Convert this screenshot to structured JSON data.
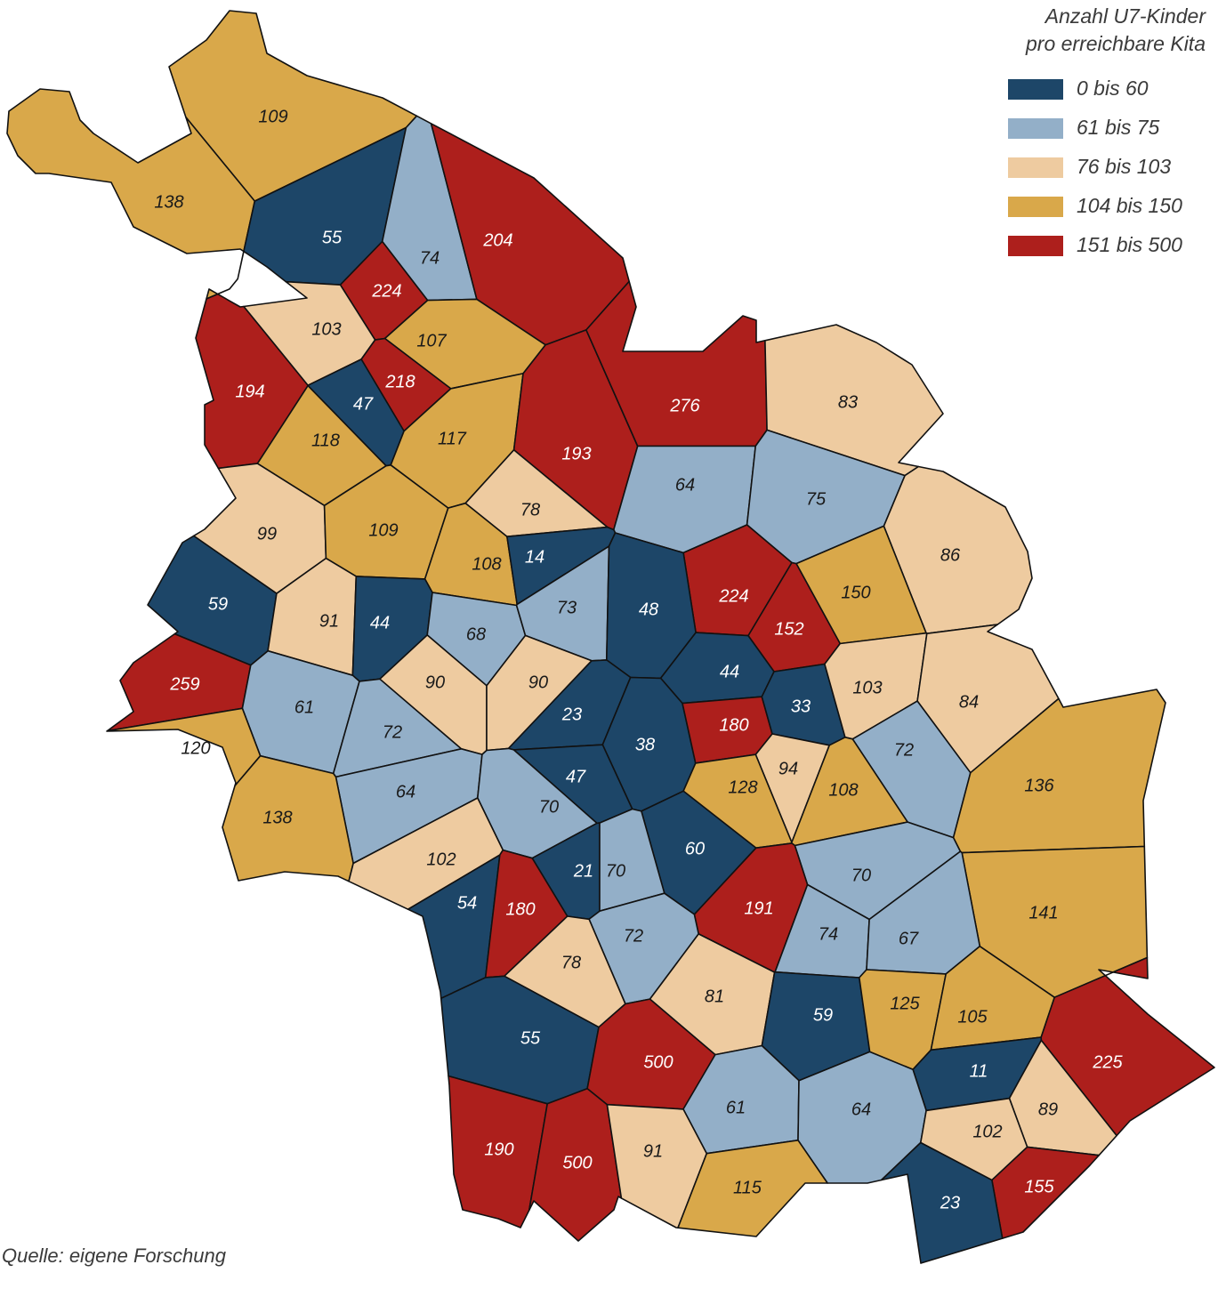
{
  "legend": {
    "title": [
      "Anzahl U7-Kinder",
      "pro erreichbare Kita"
    ],
    "classes": [
      {
        "label": "0 bis 60",
        "min": 0,
        "max": 60,
        "color": "#1d4668"
      },
      {
        "label": "61 bis 75",
        "min": 61,
        "max": 75,
        "color": "#93afc8"
      },
      {
        "label": "76 bis 103",
        "min": 76,
        "max": 103,
        "color": "#eecba0"
      },
      {
        "label": "104 bis 150",
        "min": 104,
        "max": 150,
        "color": "#d9a84a"
      },
      {
        "label": "151 bis 500",
        "min": 151,
        "max": 500,
        "color": "#ad1f1c"
      }
    ]
  },
  "source": "Quelle: eigene Forschung",
  "region_values": [
    109,
    138,
    55,
    74,
    204,
    224,
    103,
    107,
    218,
    194,
    47,
    118,
    117,
    193,
    276,
    83,
    64,
    75,
    78,
    99,
    109,
    108,
    14,
    86,
    150,
    224,
    59,
    91,
    44,
    68,
    73,
    48,
    152,
    44,
    259,
    61,
    90,
    90,
    23,
    38,
    180,
    33,
    103,
    84,
    72,
    120,
    94,
    72,
    47,
    128,
    108,
    136,
    64,
    70,
    138,
    60,
    70,
    102,
    21,
    70,
    54,
    180,
    191,
    141,
    72,
    74,
    67,
    78,
    81,
    59,
    125,
    105,
    55,
    500,
    11,
    225,
    61,
    64,
    89,
    102,
    190,
    500,
    91,
    115,
    155,
    23
  ]
}
